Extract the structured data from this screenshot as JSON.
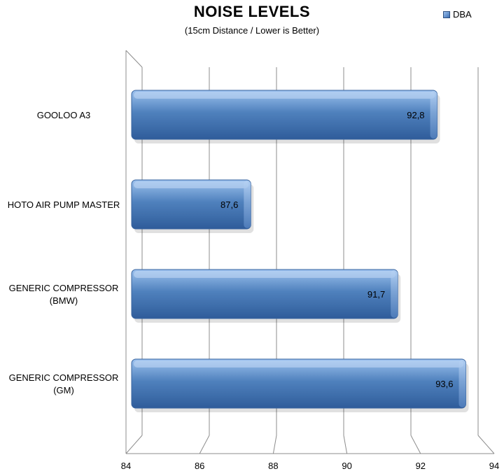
{
  "chart_data": {
    "type": "bar",
    "orientation": "horizontal",
    "title": "NOISE LEVELS",
    "subtitle": "(15cm Distance / Lower is Better)",
    "categories": [
      [
        "GOOLOO A3"
      ],
      [
        "HOTO AIR PUMP MASTER"
      ],
      [
        "GENERIC COMPRESSOR",
        "(BMW)"
      ],
      [
        "GENERIC COMPRESSOR",
        "(GM)"
      ]
    ],
    "series": [
      {
        "name": "DBA",
        "values": [
          92.8,
          87.6,
          91.7,
          93.6
        ],
        "value_labels": [
          "92,8",
          "87,6",
          "91,7",
          "93,6"
        ]
      }
    ],
    "xlim": [
      84,
      94
    ],
    "x_ticks": [
      84,
      86,
      88,
      90,
      92,
      94
    ],
    "legend": "top-right",
    "grid": true,
    "colors": {
      "bar": "#4f81bd",
      "bar_light": "#9cc1ee",
      "bar_dark": "#2f5c9a",
      "grid": "#8c8c8c"
    }
  }
}
